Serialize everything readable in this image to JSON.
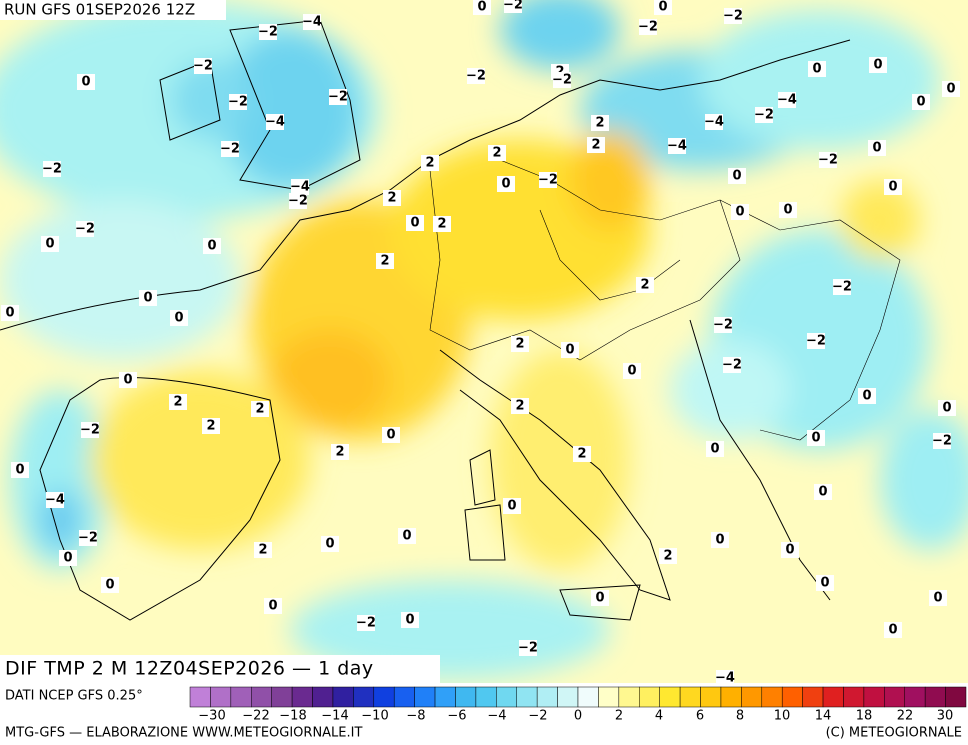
{
  "header": {
    "run": "RUN GFS 01SEP2026 12Z"
  },
  "map": {
    "title": "DIF TMP 2 M 12Z04SEP2026 — 1 day",
    "contour_labels": [
      "−4",
      "−2",
      "−2",
      "−2",
      "−4",
      "−2",
      "−2",
      "−4",
      "−2",
      "−2",
      "−2",
      "0",
      "0",
      "0",
      "0",
      "0",
      "0",
      "0",
      "2",
      "2",
      "2",
      "−2",
      "0",
      "−4",
      "−2",
      "0",
      "0",
      "2",
      "0",
      "0",
      "0",
      "−2",
      "0",
      "−2",
      "0",
      "0",
      "2",
      "0",
      "0",
      "0",
      "0",
      "0",
      "0",
      "0",
      "0",
      "0",
      "−2",
      "0",
      "−2",
      "−2",
      "−2",
      "−2",
      "0",
      "2",
      "2",
      "0",
      "2",
      "2",
      "2",
      "0",
      "2",
      "2",
      "0",
      "2",
      "2",
      "2",
      "0",
      "−2",
      "2",
      "2",
      "2",
      "−2",
      "−2",
      "−2",
      "0",
      "0",
      "0",
      "−2",
      "−4",
      "−2",
      "−4",
      "−4",
      "0",
      "0",
      "0",
      "0",
      "0",
      "0",
      "0",
      "0",
      "−2",
      "−2",
      "−4",
      "0",
      "0"
    ]
  },
  "legend": {
    "source": "DATI NCEP GFS 0.25°",
    "labels": [
      "−30",
      "−22",
      "−18",
      "−14",
      "−10",
      "−8",
      "−6",
      "−4",
      "−2",
      "0",
      "2",
      "4",
      "6",
      "8",
      "10",
      "14",
      "18",
      "22",
      "30"
    ]
  },
  "footer": {
    "left": "MTG-GFS — ELABORAZIONE WWW.METEOGIORNALE.IT",
    "right": "(C) METEOGIORNALE"
  }
}
